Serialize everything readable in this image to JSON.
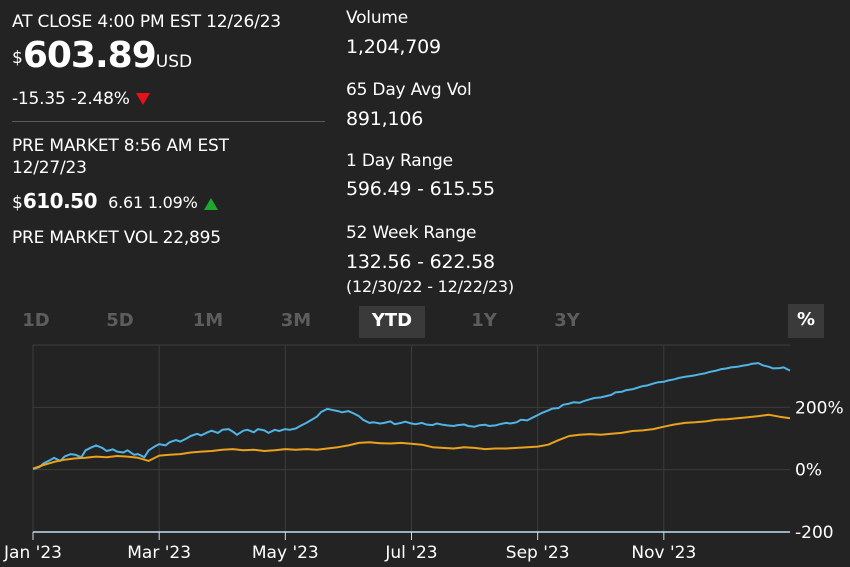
{
  "quote": {
    "close_label": "AT CLOSE 4:00 PM EST 12/26/23",
    "currency_symbol": "$",
    "price": "603.89",
    "currency": "USD",
    "change": "-15.35 -2.48%",
    "change_direction": "down",
    "premarket_label_line1": "PRE MARKET 8:56 AM EST",
    "premarket_label_line2": "12/27/23",
    "premarket_symbol": "$",
    "premarket_price": "610.50",
    "premarket_change": "6.61 1.09%",
    "premarket_direction": "up",
    "premarket_vol": "PRE MARKET VOL 22,895"
  },
  "stats": {
    "volume_label": "Volume",
    "volume_value": "1,204,709",
    "avg_vol_label": "65 Day Avg Vol",
    "avg_vol_value": "891,106",
    "day_range_label": "1 Day Range",
    "day_range_value": "596.49 - 615.55",
    "week52_label": "52 Week Range",
    "week52_value": "132.56 - 622.58",
    "week52_dates": "(12/30/22 - 12/22/23)"
  },
  "tabs": [
    "1D",
    "5D",
    "1M",
    "3M",
    "YTD",
    "1Y",
    "3Y"
  ],
  "active_tab": "YTD",
  "percent_toggle": "%",
  "colors": {
    "background": "#232323",
    "down": "#e8101b",
    "up": "#1fa72e",
    "series_stock": "#4fb4e6",
    "series_index": "#e8a21b"
  },
  "chart_data": {
    "type": "line",
    "x_tick_labels": [
      "Jan '23",
      "Mar '23",
      "May '23",
      "Jul '23",
      "Sep '23",
      "Nov '23"
    ],
    "y_tick_labels": [
      "200%",
      "0%",
      "-200"
    ],
    "ylim": [
      -200,
      400
    ],
    "grid": true,
    "series": [
      {
        "color": "#4fb4e6",
        "x": [
          0,
          3,
          5,
          8,
          10,
          13,
          15,
          18,
          20,
          23,
          25,
          28,
          30,
          33,
          35,
          38,
          40,
          43,
          45,
          48,
          50,
          53,
          55,
          58,
          60,
          63,
          65,
          68,
          70,
          73,
          75,
          78,
          80,
          83,
          85,
          88,
          90,
          93,
          95,
          97,
          100,
          102,
          105,
          107,
          110,
          112,
          115,
          117,
          120,
          122,
          125,
          127,
          130,
          132,
          135,
          137,
          140,
          142,
          145,
          147,
          150,
          152,
          155,
          157,
          160,
          162,
          165,
          167,
          170,
          172,
          175,
          177,
          180,
          182,
          185,
          187,
          190,
          192,
          195,
          197,
          200,
          202,
          205,
          207,
          210,
          212,
          215,
          217,
          220,
          222,
          225,
          227,
          230,
          232,
          235,
          237,
          240,
          242,
          245,
          247,
          250,
          252,
          255,
          257,
          260,
          262,
          265,
          267,
          270,
          272,
          275,
          277,
          280,
          282,
          285,
          287,
          290,
          292,
          295,
          297,
          300,
          302,
          305,
          307,
          310,
          312,
          315,
          317,
          320,
          322,
          325,
          327,
          330,
          332,
          335,
          337,
          340,
          342,
          345,
          347,
          350,
          352,
          355,
          357,
          360
        ],
        "values": [
          2,
          8,
          20,
          30,
          38,
          28,
          42,
          50,
          48,
          40,
          62,
          72,
          78,
          70,
          60,
          65,
          58,
          55,
          62,
          48,
          50,
          40,
          62,
          75,
          82,
          78,
          88,
          95,
          90,
          100,
          108,
          115,
          110,
          120,
          125,
          118,
          128,
          130,
          122,
          112,
          125,
          128,
          120,
          130,
          126,
          118,
          128,
          124,
          130,
          128,
          132,
          140,
          150,
          158,
          170,
          185,
          195,
          192,
          188,
          184,
          188,
          182,
          172,
          160,
          150,
          152,
          148,
          150,
          155,
          146,
          150,
          154,
          148,
          146,
          150,
          145,
          143,
          148,
          144,
          142,
          140,
          143,
          145,
          140,
          138,
          142,
          144,
          140,
          142,
          146,
          150,
          148,
          152,
          160,
          158,
          165,
          175,
          182,
          190,
          196,
          198,
          208,
          212,
          216,
          215,
          220,
          226,
          230,
          232,
          235,
          240,
          248,
          250,
          255,
          258,
          262,
          268,
          270,
          276,
          280,
          282,
          286,
          290,
          294,
          298,
          300,
          303,
          306,
          310,
          314,
          318,
          322,
          325,
          328,
          330,
          333,
          336,
          340,
          342,
          335,
          330,
          325,
          326,
          328,
          318
        ]
      },
      {
        "color": "#e8a21b",
        "x": [
          0,
          5,
          10,
          15,
          20,
          25,
          30,
          35,
          40,
          45,
          50,
          55,
          60,
          65,
          70,
          75,
          80,
          85,
          90,
          95,
          100,
          105,
          110,
          115,
          120,
          125,
          130,
          135,
          140,
          145,
          150,
          155,
          160,
          165,
          170,
          175,
          180,
          185,
          190,
          195,
          200,
          205,
          210,
          215,
          220,
          225,
          230,
          235,
          240,
          245,
          250,
          255,
          260,
          265,
          270,
          275,
          280,
          285,
          290,
          295,
          300,
          305,
          310,
          315,
          320,
          325,
          330,
          335,
          340,
          345,
          350,
          355,
          360
        ],
        "values": [
          3,
          15,
          25,
          32,
          36,
          38,
          42,
          40,
          44,
          42,
          38,
          28,
          45,
          48,
          50,
          55,
          58,
          60,
          64,
          66,
          62,
          64,
          60,
          62,
          66,
          64,
          66,
          64,
          68,
          72,
          78,
          86,
          88,
          85,
          84,
          86,
          83,
          80,
          72,
          70,
          68,
          72,
          70,
          66,
          68,
          68,
          70,
          72,
          74,
          80,
          95,
          108,
          112,
          114,
          112,
          115,
          118,
          124,
          126,
          130,
          138,
          145,
          150,
          152,
          155,
          160,
          162,
          165,
          168,
          172,
          176,
          170,
          165
        ]
      }
    ]
  }
}
